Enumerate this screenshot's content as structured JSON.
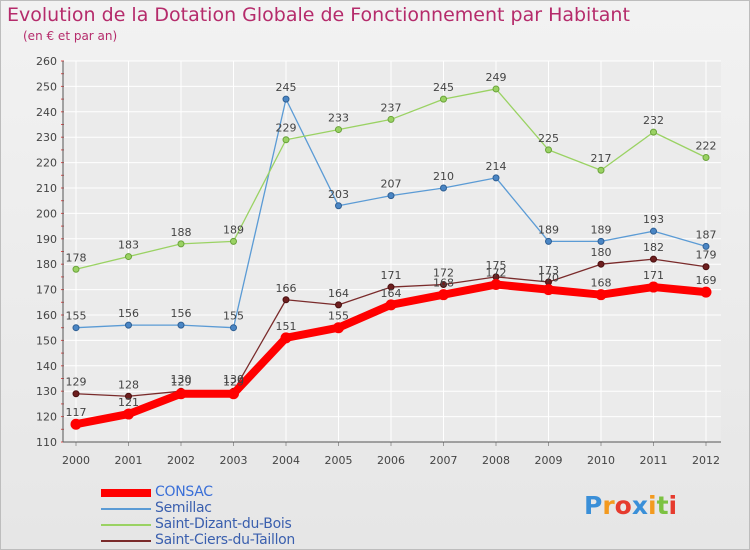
{
  "title": "Evolution de la Dotation Globale de Fonctionnement par Habitant",
  "subtitle": "(en € et par an)",
  "logo": {
    "text": "Proxiti",
    "letters": [
      "P",
      "r",
      "o",
      "x",
      "i",
      "t",
      "i"
    ],
    "letter_colors": [
      "#3a8fd8",
      "#f39a1f",
      "#e63b2e",
      "#3a8fd8",
      "#f39a1f",
      "#7cc242",
      "#e63b2e"
    ]
  },
  "colors": {
    "CONSAC": "#ff0000",
    "Semillac": "#5b9bd5",
    "Saint-Dizant-du-Bois": "#9ad263",
    "Saint-Ciers-du-Taillon": "#7a2b2b",
    "axis_text": "#444444",
    "grid": "#ffffff",
    "label_text": "#444444"
  },
  "chart_data": {
    "type": "line",
    "title": "Evolution de la Dotation Globale de Fonctionnement par Habitant",
    "subtitle": "(en € et par an)",
    "xlabel": "",
    "ylabel": "",
    "x": [
      "2000",
      "2001",
      "2002",
      "2003",
      "2004",
      "2005",
      "2006",
      "2007",
      "2008",
      "2009",
      "2010",
      "2011",
      "2012"
    ],
    "ylim": [
      110,
      260
    ],
    "yticks": [
      110,
      120,
      130,
      140,
      150,
      160,
      170,
      180,
      190,
      200,
      210,
      220,
      230,
      240,
      250,
      260
    ],
    "grid": true,
    "legend_position": "bottom-left",
    "series": [
      {
        "name": "CONSAC",
        "values": [
          117,
          121,
          129,
          129,
          151,
          155,
          164,
          168,
          172,
          170,
          168,
          171,
          169
        ]
      },
      {
        "name": "Semillac",
        "values": [
          155,
          156,
          156,
          155,
          245,
          203,
          207,
          210,
          214,
          189,
          189,
          193,
          187
        ]
      },
      {
        "name": "Saint-Dizant-du-Bois",
        "values": [
          178,
          183,
          188,
          189,
          229,
          233,
          237,
          245,
          249,
          225,
          217,
          232,
          222
        ]
      },
      {
        "name": "Saint-Ciers-du-Taillon",
        "values": [
          129,
          128,
          130,
          130,
          166,
          164,
          171,
          172,
          175,
          173,
          180,
          182,
          179
        ]
      }
    ]
  }
}
